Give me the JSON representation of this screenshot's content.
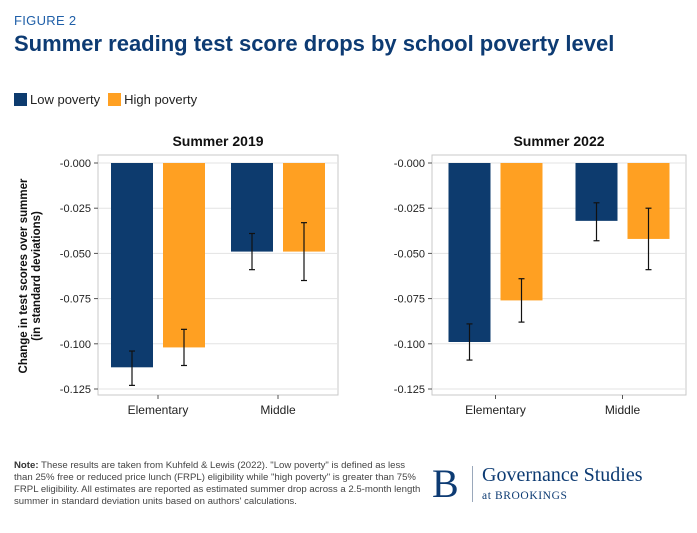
{
  "figure_label": "FIGURE 2",
  "title": "Summer reading test score drops by school poverty level",
  "legend": [
    {
      "label": "Low poverty",
      "color": "#0d3b6e"
    },
    {
      "label": "High poverty",
      "color": "#ffa022"
    }
  ],
  "chart_data": [
    {
      "type": "bar",
      "title": "Summer 2019",
      "categories": [
        "Elementary",
        "Middle"
      ],
      "ylabel": "Change in test scores over summer (in standard deviations)",
      "ylim": [
        -0.125,
        0
      ],
      "yticks": [
        "-0.000",
        "-0.025",
        "-0.050",
        "-0.075",
        "-0.100",
        "-0.125"
      ],
      "ytick_values": [
        0,
        -0.025,
        -0.05,
        -0.075,
        -0.1,
        -0.125
      ],
      "grid": true,
      "series": [
        {
          "name": "Low poverty",
          "values": [
            -0.113,
            -0.049
          ],
          "error_low": [
            -0.123,
            -0.059
          ],
          "error_high": [
            -0.104,
            -0.039
          ]
        },
        {
          "name": "High poverty",
          "values": [
            -0.102,
            -0.049
          ],
          "error_low": [
            -0.112,
            -0.065
          ],
          "error_high": [
            -0.092,
            -0.033
          ]
        }
      ]
    },
    {
      "type": "bar",
      "title": "Summer 2022",
      "categories": [
        "Elementary",
        "Middle"
      ],
      "ylabel": "",
      "ylim": [
        -0.125,
        0
      ],
      "yticks": [
        "-0.000",
        "-0.025",
        "-0.050",
        "-0.075",
        "-0.100",
        "-0.125"
      ],
      "ytick_values": [
        0,
        -0.025,
        -0.05,
        -0.075,
        -0.1,
        -0.125
      ],
      "grid": true,
      "series": [
        {
          "name": "Low poverty",
          "values": [
            -0.099,
            -0.032
          ],
          "error_low": [
            -0.109,
            -0.043
          ],
          "error_high": [
            -0.089,
            -0.022
          ]
        },
        {
          "name": "High poverty",
          "values": [
            -0.076,
            -0.042
          ],
          "error_low": [
            -0.088,
            -0.059
          ],
          "error_high": [
            -0.064,
            -0.025
          ]
        }
      ]
    }
  ],
  "note": {
    "label": "Note:",
    "text": " These results are taken from Kuhfeld & Lewis (2022). \"Low poverty\" is defined as less than 25% free or reduced price lunch (FRPL) eligibility while \"high poverty\" is greater than 75% FRPL eligibility. All estimates are reported as estimated summer drop across a 2.5-month length summer in standard deviation units based on authors' calculations."
  },
  "brand": {
    "mark": "B",
    "name": "Governance Studies",
    "sub": "at BROOKINGS"
  }
}
